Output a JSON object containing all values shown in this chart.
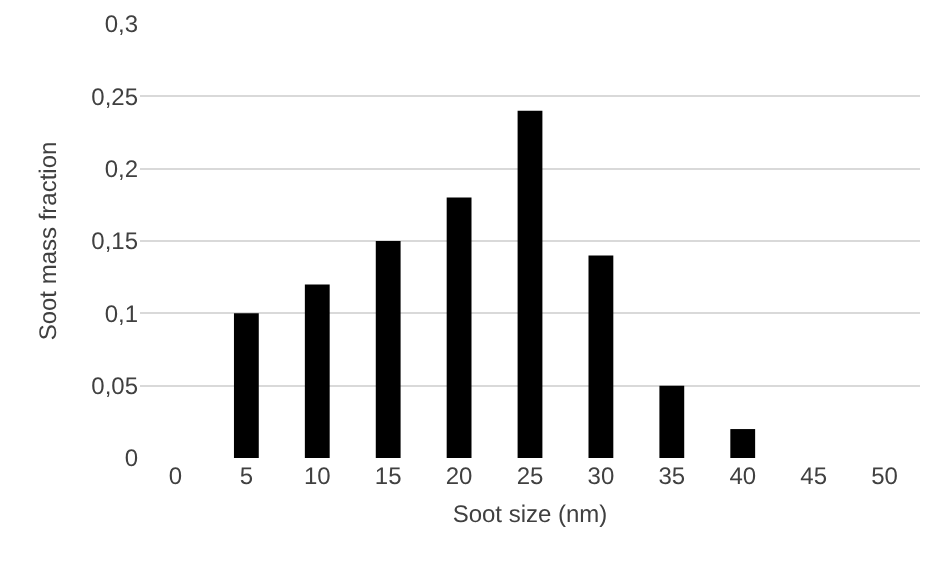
{
  "chart_data": {
    "type": "bar",
    "xlabel": "Soot size (nm)",
    "ylabel": "Soot mass fraction",
    "categories": [
      "0",
      "5",
      "10",
      "15",
      "20",
      "25",
      "30",
      "35",
      "40",
      "45",
      "50"
    ],
    "values": [
      0,
      0.1,
      0.12,
      0.15,
      0.18,
      0.24,
      0.14,
      0.05,
      0.02,
      0,
      0
    ],
    "color": "#000000",
    "ylim": [
      0,
      0.3
    ],
    "yticks": [
      {
        "value": 0,
        "label": "0"
      },
      {
        "value": 0.05,
        "label": "0,05"
      },
      {
        "value": 0.1,
        "label": "0,1"
      },
      {
        "value": 0.15,
        "label": "0,15"
      },
      {
        "value": 0.2,
        "label": "0,2"
      },
      {
        "value": 0.25,
        "label": "0,25"
      },
      {
        "value": 0.3,
        "label": "0,3"
      }
    ],
    "grid": "y"
  }
}
